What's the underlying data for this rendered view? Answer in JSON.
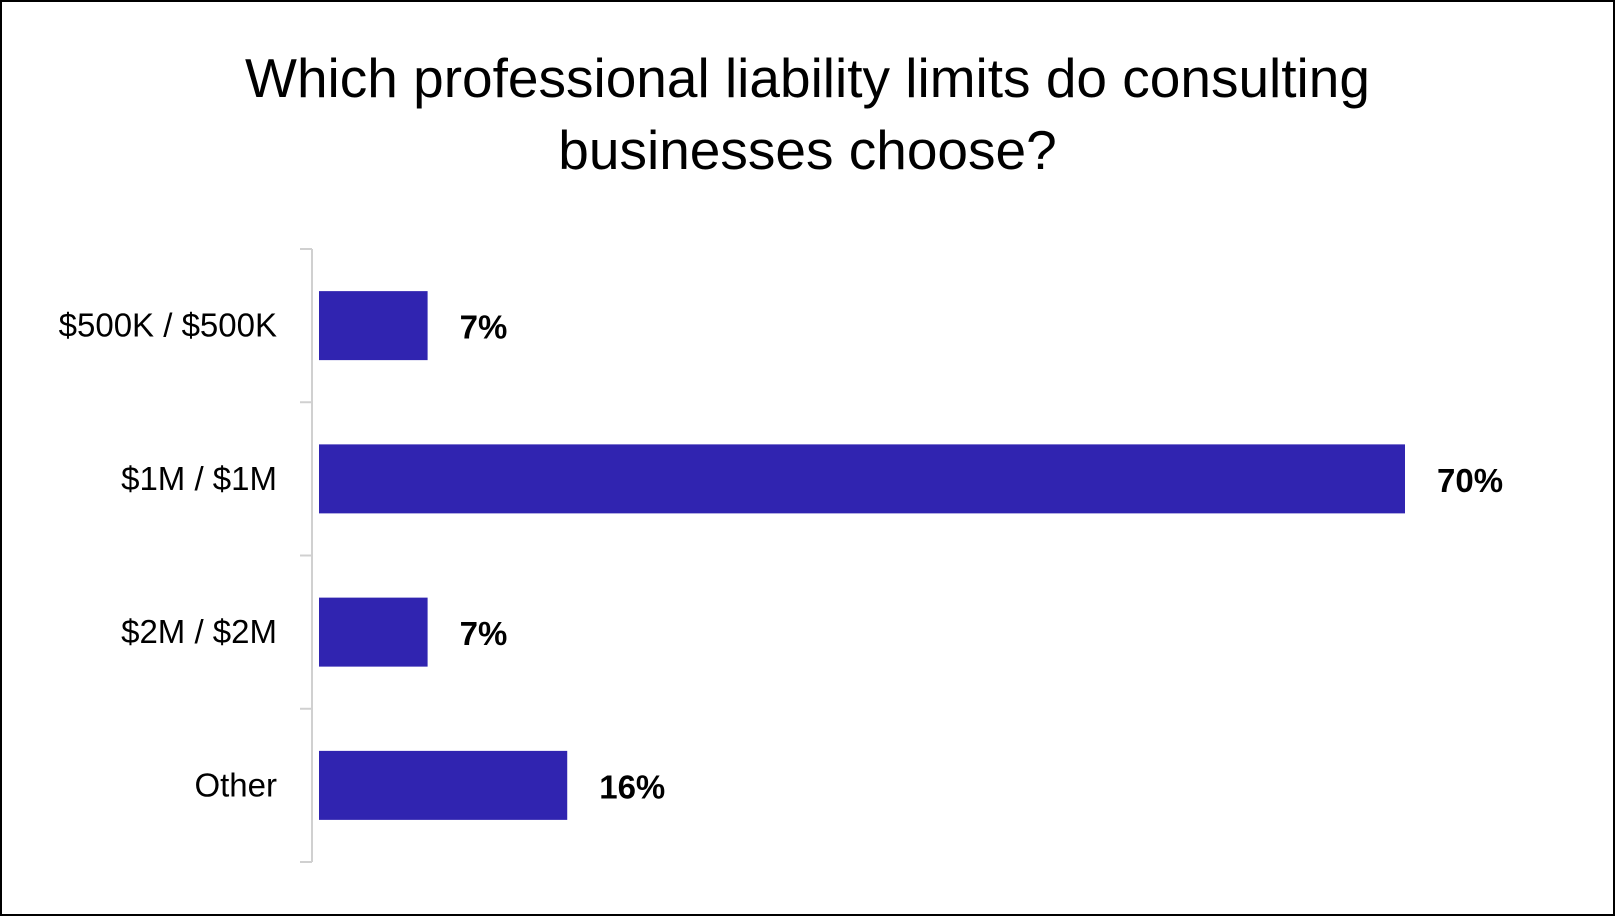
{
  "chart_data": {
    "type": "bar",
    "orientation": "horizontal",
    "title": "Which professional liability limits do consulting\nbusinesses choose?",
    "categories": [
      "$500K / $500K",
      "$1M / $1M",
      "$2M / $2M",
      "Other"
    ],
    "values": [
      7,
      70,
      7,
      16
    ],
    "value_labels": [
      "7%",
      "70%",
      "7%",
      "16%"
    ],
    "xlabel": "",
    "ylabel": "",
    "xlim": [
      0,
      70
    ],
    "grid": false,
    "legend": "none",
    "bar_color": "#3024b0",
    "axis_color": "#d0d0d0"
  }
}
